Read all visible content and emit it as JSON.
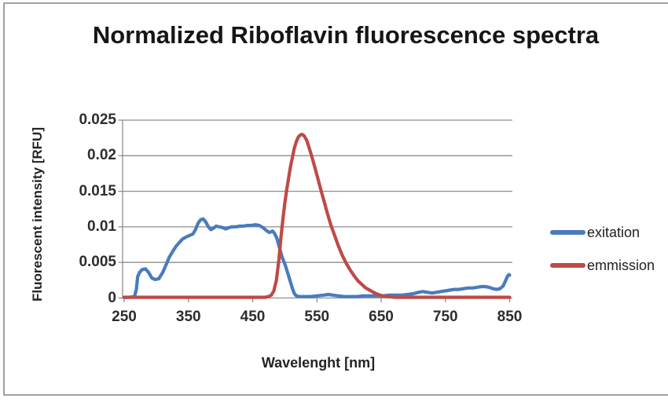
{
  "chart_data": {
    "type": "line",
    "title": "Normalized Riboflavin fluorescence spectra",
    "xlabel": "Wavelenght [nm]",
    "ylabel": "Fluorescent intensity [RFU]",
    "xlim": [
      250,
      850
    ],
    "ylim": [
      0,
      0.025
    ],
    "x_ticks": [
      250,
      350,
      450,
      550,
      650,
      750,
      850
    ],
    "y_ticks": [
      0,
      0.005,
      0.01,
      0.015,
      0.02,
      0.025
    ],
    "y_tick_labels": [
      "0",
      "0.005",
      "0.01",
      "0.015",
      "0.02",
      "0.025"
    ],
    "grid": "horizontal",
    "legend_position": "right",
    "gridline_color": "#8e8e8e",
    "series": [
      {
        "name": "exitation",
        "color": "#4a7bbd",
        "points": [
          [
            250,
            0.0001
          ],
          [
            258,
            0.0001
          ],
          [
            266,
            0.0002
          ],
          [
            269,
            0.0012
          ],
          [
            271,
            0.003
          ],
          [
            274,
            0.0036
          ],
          [
            278,
            0.004
          ],
          [
            283,
            0.0041
          ],
          [
            288,
            0.0036
          ],
          [
            293,
            0.0028
          ],
          [
            298,
            0.0026
          ],
          [
            304,
            0.0027
          ],
          [
            310,
            0.0036
          ],
          [
            315,
            0.0046
          ],
          [
            320,
            0.0057
          ],
          [
            326,
            0.0066
          ],
          [
            331,
            0.0073
          ],
          [
            336,
            0.0078
          ],
          [
            341,
            0.0083
          ],
          [
            347,
            0.0086
          ],
          [
            352,
            0.0088
          ],
          [
            357,
            0.009
          ],
          [
            361,
            0.0096
          ],
          [
            365,
            0.0105
          ],
          [
            369,
            0.011
          ],
          [
            373,
            0.0111
          ],
          [
            377,
            0.0107
          ],
          [
            381,
            0.01
          ],
          [
            385,
            0.0096
          ],
          [
            389,
            0.0098
          ],
          [
            393,
            0.0101
          ],
          [
            398,
            0.01
          ],
          [
            403,
            0.0099
          ],
          [
            408,
            0.0097
          ],
          [
            413,
            0.0099
          ],
          [
            418,
            0.01
          ],
          [
            424,
            0.01
          ],
          [
            430,
            0.0101
          ],
          [
            436,
            0.0101
          ],
          [
            442,
            0.0102
          ],
          [
            448,
            0.0102
          ],
          [
            454,
            0.0103
          ],
          [
            460,
            0.0102
          ],
          [
            466,
            0.0099
          ],
          [
            471,
            0.0095
          ],
          [
            476,
            0.0092
          ],
          [
            481,
            0.0094
          ],
          [
            484,
            0.0091
          ],
          [
            488,
            0.0083
          ],
          [
            492,
            0.007
          ],
          [
            496,
            0.0057
          ],
          [
            500,
            0.0048
          ],
          [
            504,
            0.0037
          ],
          [
            508,
            0.0025
          ],
          [
            512,
            0.0013
          ],
          [
            515,
            0.0006
          ],
          [
            518,
            0.0003
          ],
          [
            522,
            0.0002
          ],
          [
            530,
            0.0002
          ],
          [
            540,
            0.0002
          ],
          [
            550,
            0.0003
          ],
          [
            560,
            0.0004
          ],
          [
            568,
            0.0005
          ],
          [
            575,
            0.0004
          ],
          [
            583,
            0.0003
          ],
          [
            592,
            0.0002
          ],
          [
            602,
            0.0002
          ],
          [
            612,
            0.0002
          ],
          [
            622,
            0.0003
          ],
          [
            632,
            0.0003
          ],
          [
            642,
            0.0003
          ],
          [
            652,
            0.0003
          ],
          [
            662,
            0.0004
          ],
          [
            672,
            0.0004
          ],
          [
            682,
            0.0004
          ],
          [
            692,
            0.0005
          ],
          [
            700,
            0.0006
          ],
          [
            708,
            0.0008
          ],
          [
            715,
            0.0009
          ],
          [
            722,
            0.0008
          ],
          [
            729,
            0.0007
          ],
          [
            736,
            0.0008
          ],
          [
            743,
            0.0009
          ],
          [
            750,
            0.001
          ],
          [
            757,
            0.0011
          ],
          [
            764,
            0.0012
          ],
          [
            771,
            0.0012
          ],
          [
            778,
            0.0013
          ],
          [
            785,
            0.0014
          ],
          [
            792,
            0.0014
          ],
          [
            799,
            0.0015
          ],
          [
            806,
            0.0016
          ],
          [
            812,
            0.0016
          ],
          [
            818,
            0.0015
          ],
          [
            824,
            0.0013
          ],
          [
            830,
            0.0012
          ],
          [
            835,
            0.0013
          ],
          [
            840,
            0.0017
          ],
          [
            844,
            0.0025
          ],
          [
            847,
            0.0031
          ],
          [
            849,
            0.0033
          ],
          [
            850,
            0.0032
          ]
        ]
      },
      {
        "name": "emmission",
        "color": "#bf4a47",
        "points": [
          [
            250,
            0.0001
          ],
          [
            300,
            0.0001
          ],
          [
            350,
            0.0001
          ],
          [
            400,
            0.0001
          ],
          [
            430,
            0.0001
          ],
          [
            450,
            0.0001
          ],
          [
            460,
            0.0001
          ],
          [
            466,
            0.0001
          ],
          [
            470,
            0.0001
          ],
          [
            475,
            0.0002
          ],
          [
            479,
            0.0004
          ],
          [
            483,
            0.001
          ],
          [
            487,
            0.0025
          ],
          [
            491,
            0.0055
          ],
          [
            494,
            0.0085
          ],
          [
            497,
            0.011
          ],
          [
            500,
            0.0133
          ],
          [
            503,
            0.0152
          ],
          [
            506,
            0.0169
          ],
          [
            509,
            0.0185
          ],
          [
            512,
            0.0198
          ],
          [
            515,
            0.0211
          ],
          [
            518,
            0.022
          ],
          [
            521,
            0.0226
          ],
          [
            524,
            0.0229
          ],
          [
            527,
            0.023
          ],
          [
            530,
            0.0228
          ],
          [
            534,
            0.0222
          ],
          [
            538,
            0.0211
          ],
          [
            542,
            0.0199
          ],
          [
            547,
            0.0183
          ],
          [
            552,
            0.0166
          ],
          [
            557,
            0.0149
          ],
          [
            562,
            0.0133
          ],
          [
            567,
            0.0117
          ],
          [
            572,
            0.0102
          ],
          [
            578,
            0.0087
          ],
          [
            584,
            0.0072
          ],
          [
            590,
            0.0059
          ],
          [
            596,
            0.0048
          ],
          [
            602,
            0.0039
          ],
          [
            608,
            0.0031
          ],
          [
            614,
            0.0024
          ],
          [
            620,
            0.0019
          ],
          [
            626,
            0.0014
          ],
          [
            632,
            0.0011
          ],
          [
            638,
            0.0008
          ],
          [
            645,
            0.0005
          ],
          [
            652,
            0.0003
          ],
          [
            660,
            0.0002
          ],
          [
            670,
            0.0001
          ],
          [
            685,
            0.0001
          ],
          [
            700,
            0.0001
          ],
          [
            725,
            0.0001
          ],
          [
            750,
            0.0001
          ],
          [
            775,
            0.0001
          ],
          [
            800,
            0.0001
          ],
          [
            825,
            0.0001
          ],
          [
            850,
            0.0001
          ]
        ]
      }
    ]
  }
}
